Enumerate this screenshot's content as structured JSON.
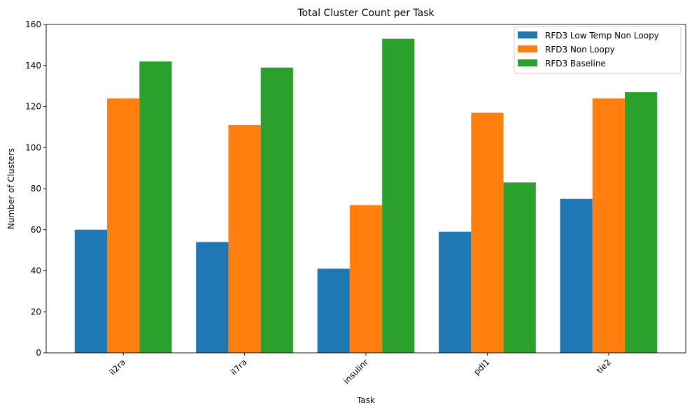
{
  "chart_data": {
    "type": "bar",
    "title": "Total Cluster Count per Task",
    "xlabel": "Task",
    "ylabel": "Number of Clusters",
    "categories": [
      "il2ra",
      "il7ra",
      "insulinr",
      "pdl1",
      "tie2"
    ],
    "series": [
      {
        "name": "RFD3 Low Temp Non Loopy",
        "color": "#1f77b4",
        "values": [
          60,
          54,
          41,
          59,
          75
        ]
      },
      {
        "name": "RFD3 Non Loopy",
        "color": "#ff7f0e",
        "values": [
          124,
          111,
          72,
          117,
          124
        ]
      },
      {
        "name": "RFD3 Baseline",
        "color": "#2ca02c",
        "values": [
          142,
          139,
          153,
          83,
          127
        ]
      }
    ],
    "ylim": [
      0,
      160
    ],
    "yticks": [
      0,
      20,
      40,
      60,
      80,
      100,
      120,
      140,
      160
    ],
    "grid": false,
    "legend_position": "top-right"
  }
}
